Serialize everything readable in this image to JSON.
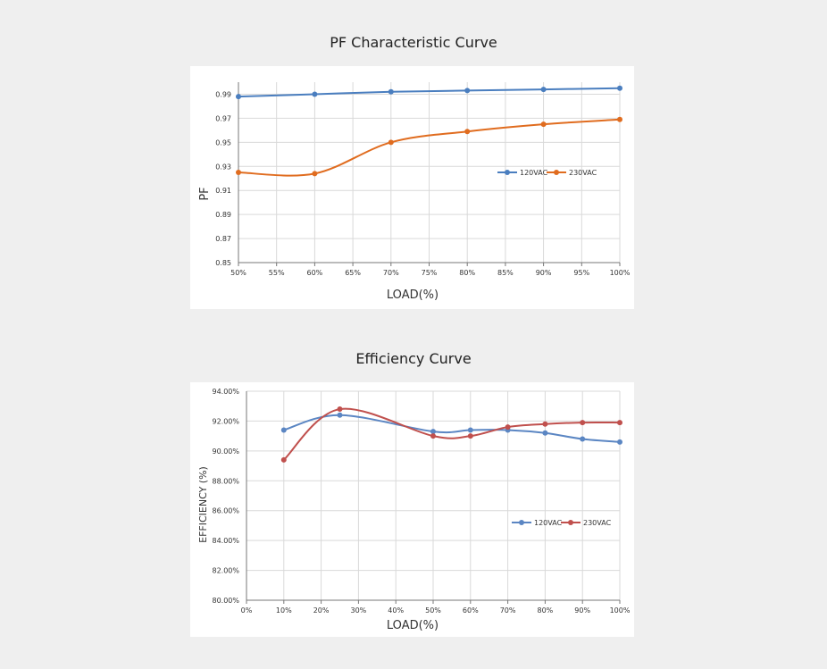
{
  "charts": [
    {
      "title": "PF Characteristic Curve",
      "xlabel": "LOAD(%)",
      "ylabel": "PF"
    },
    {
      "title": "Efficiency Curve",
      "xlabel": "LOAD(%)",
      "ylabel": "EFFICIENCY (%)"
    }
  ],
  "chart_data": [
    {
      "type": "line",
      "title": "PF Characteristic Curve",
      "xlabel": "LOAD(%)",
      "ylabel": "PF",
      "xlim": [
        50,
        100
      ],
      "ylim": [
        0.85,
        1.0
      ],
      "x_ticks": [
        "50%",
        "55%",
        "60%",
        "65%",
        "70%",
        "75%",
        "80%",
        "85%",
        "90%",
        "95%",
        "100%"
      ],
      "y_ticks": [
        "0.85",
        "0.87",
        "0.89",
        "0.91",
        "0.93",
        "0.95",
        "0.97",
        "0.99"
      ],
      "grid": true,
      "legend_position": "center-right",
      "series": [
        {
          "name": "120VAC",
          "color": "#4a7ebf",
          "x": [
            50,
            60,
            70,
            80,
            90,
            100
          ],
          "values": [
            0.988,
            0.99,
            0.992,
            0.993,
            0.994,
            0.995
          ]
        },
        {
          "name": "230VAC",
          "color": "#e06c1f",
          "x": [
            50,
            60,
            70,
            80,
            90,
            100
          ],
          "values": [
            0.925,
            0.924,
            0.95,
            0.959,
            0.965,
            0.969
          ]
        }
      ]
    },
    {
      "type": "line",
      "title": "Efficiency Curve",
      "xlabel": "LOAD(%)",
      "ylabel": "EFFICIENCY (%)",
      "xlim": [
        0,
        100
      ],
      "ylim": [
        80,
        94
      ],
      "x_ticks": [
        "0%",
        "10%",
        "20%",
        "30%",
        "40%",
        "50%",
        "60%",
        "70%",
        "80%",
        "90%",
        "100%"
      ],
      "y_ticks": [
        "80.00%",
        "82.00%",
        "84.00%",
        "86.00%",
        "88.00%",
        "90.00%",
        "92.00%",
        "94.00%"
      ],
      "grid": true,
      "legend_position": "center-right",
      "series": [
        {
          "name": "120VAC",
          "color": "#5b86c3",
          "x": [
            10,
            25,
            50,
            60,
            70,
            80,
            90,
            100
          ],
          "values": [
            91.4,
            92.4,
            91.3,
            91.4,
            91.4,
            91.2,
            90.8,
            90.6
          ]
        },
        {
          "name": "230VAC",
          "color": "#c0504d",
          "x": [
            10,
            25,
            50,
            60,
            70,
            80,
            90,
            100
          ],
          "values": [
            89.4,
            92.8,
            91.0,
            91.0,
            91.6,
            91.8,
            91.9,
            91.9
          ]
        }
      ]
    }
  ]
}
